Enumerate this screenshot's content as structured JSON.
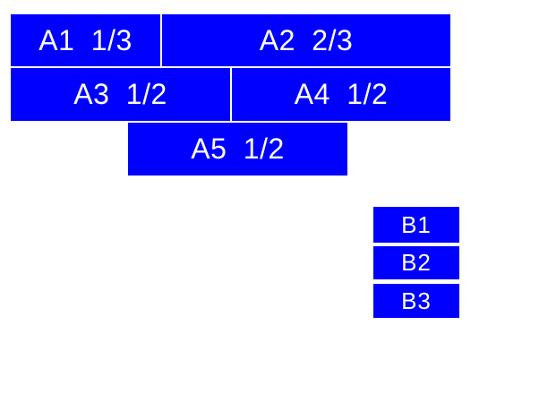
{
  "colors": {
    "box_fill": "#0000ff",
    "box_text": "#ffffff",
    "page_background": "#ffffff"
  },
  "group_a": {
    "a1": {
      "label": "A1 1/3"
    },
    "a2": {
      "label": "A2 2/3"
    },
    "a3": {
      "label": "A3 1/2"
    },
    "a4": {
      "label": "A4 1/2"
    },
    "a5": {
      "label": "A5 1/2"
    }
  },
  "group_b": {
    "b1": {
      "label": "B1"
    },
    "b2": {
      "label": "B2"
    },
    "b3": {
      "label": "B3"
    }
  }
}
